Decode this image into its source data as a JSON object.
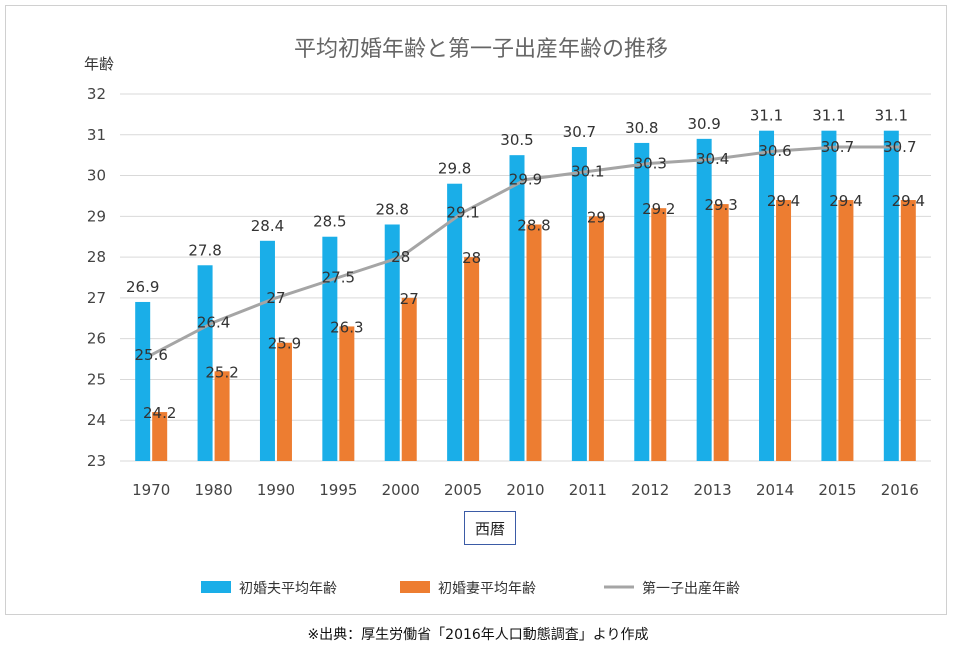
{
  "chart_data": {
    "type": "bar",
    "title": "平均初婚年齢と第一子出産年齢の推移",
    "ylabel": "年齢",
    "xlabel": "西暦",
    "ylim": [
      23,
      32
    ],
    "yticks": [
      23,
      24,
      25,
      26,
      27,
      28,
      29,
      30,
      31,
      32
    ],
    "grid": true,
    "legend_position": "bottom",
    "categories": [
      "1970",
      "1980",
      "1990",
      "1995",
      "2000",
      "2005",
      "2010",
      "2011",
      "2012",
      "2013",
      "2014",
      "2015",
      "2016"
    ],
    "series": [
      {
        "name": "初婚夫平均年齢",
        "kind": "bar",
        "color": "#1aaee8",
        "values": [
          26.9,
          27.8,
          28.4,
          28.5,
          28.8,
          29.8,
          30.5,
          30.7,
          30.8,
          30.9,
          31.1,
          31.1,
          31.1
        ]
      },
      {
        "name": "初婚妻平均年齢",
        "kind": "bar",
        "color": "#ed7d31",
        "values": [
          24.2,
          25.2,
          25.9,
          26.3,
          27,
          28,
          28.8,
          29,
          29.2,
          29.3,
          29.4,
          29.4,
          29.4
        ]
      },
      {
        "name": "第一子出産年齢",
        "kind": "line",
        "color": "#a5a5a5",
        "values": [
          25.6,
          26.4,
          27,
          27.5,
          28,
          29.1,
          29.9,
          30.1,
          30.3,
          30.4,
          30.6,
          30.7,
          30.7
        ]
      }
    ]
  },
  "source_note": "※出典：厚生労働省「2016年人口動態調査」より作成"
}
